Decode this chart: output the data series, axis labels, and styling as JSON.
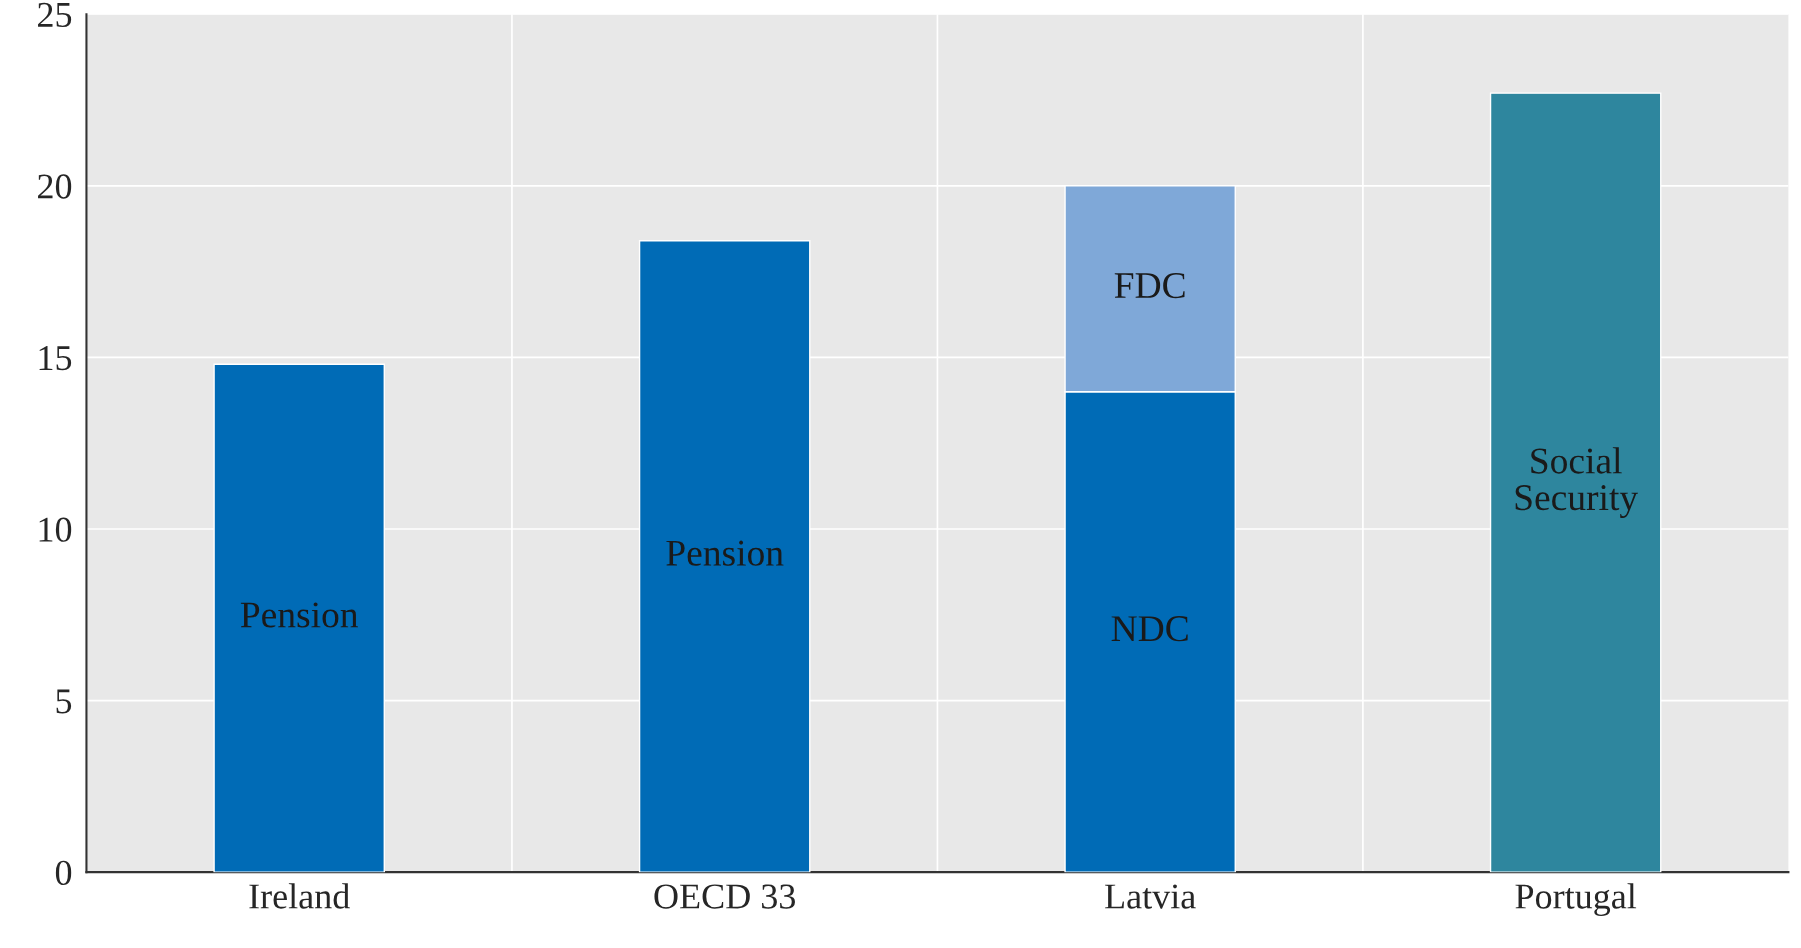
{
  "chart_data": {
    "type": "bar",
    "stacked": true,
    "categories": [
      "Ireland",
      "OECD 33",
      "Latvia",
      "Portugal"
    ],
    "series": [
      {
        "name": "Pension",
        "color": "#006bb6",
        "values": [
          14.8,
          18.4,
          null,
          null
        ]
      },
      {
        "name": "NDC",
        "color": "#006bb6",
        "values": [
          null,
          null,
          14.0,
          null
        ]
      },
      {
        "name": "FDC",
        "color": "#7fa8d8",
        "values": [
          null,
          null,
          6.0,
          null
        ]
      },
      {
        "name": "Social\nSecurity",
        "color": "#2e869e",
        "values": [
          null,
          null,
          null,
          22.7
        ]
      }
    ],
    "ylim": [
      0,
      25
    ],
    "yticks": [
      0,
      5,
      10,
      15,
      20,
      25
    ],
    "grid": true,
    "legend": false
  }
}
